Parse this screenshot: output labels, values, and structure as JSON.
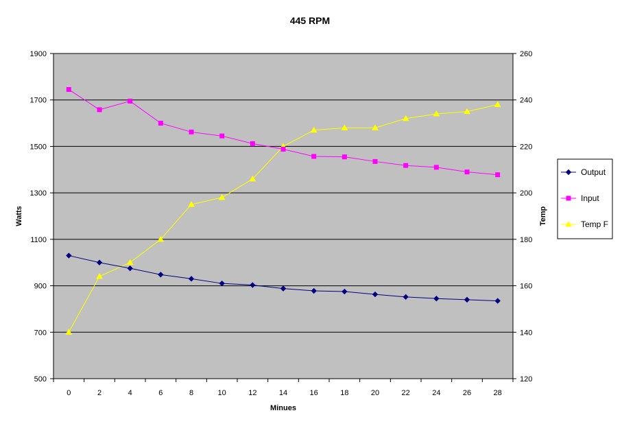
{
  "chart_data": {
    "type": "line",
    "title": "445 RPM",
    "xlabel": "Minues",
    "ylabel": "Watts",
    "y2label": "Temp",
    "x": [
      0,
      2,
      4,
      6,
      8,
      10,
      12,
      14,
      16,
      18,
      20,
      22,
      24,
      26,
      28
    ],
    "ylim": [
      500,
      1900
    ],
    "y_ticks": [
      500,
      700,
      900,
      1100,
      1300,
      1500,
      1700,
      1900
    ],
    "y2lim": [
      120,
      260
    ],
    "y2_ticks": [
      120,
      140,
      160,
      180,
      200,
      220,
      240,
      260
    ],
    "grid": "horizontal major",
    "legend_position": "right",
    "plot_background": "#c0c0c0",
    "series": [
      {
        "name": "Output",
        "axis": "left",
        "color": "#000080",
        "marker": "diamond",
        "values": [
          1030,
          1000,
          975,
          948,
          930,
          910,
          903,
          888,
          878,
          875,
          863,
          852,
          845,
          840,
          835
        ]
      },
      {
        "name": "Input",
        "axis": "left",
        "color": "#ff00ff",
        "marker": "square",
        "values": [
          1745,
          1658,
          1695,
          1600,
          1562,
          1545,
          1512,
          1488,
          1457,
          1455,
          1435,
          1418,
          1410,
          1390,
          1378
        ]
      },
      {
        "name": "Temp F",
        "axis": "right",
        "color": "#ffff00",
        "marker": "triangle",
        "values": [
          140,
          164,
          170,
          180,
          195,
          198,
          206,
          220,
          227,
          228,
          228,
          232,
          234,
          235,
          238
        ]
      }
    ]
  }
}
